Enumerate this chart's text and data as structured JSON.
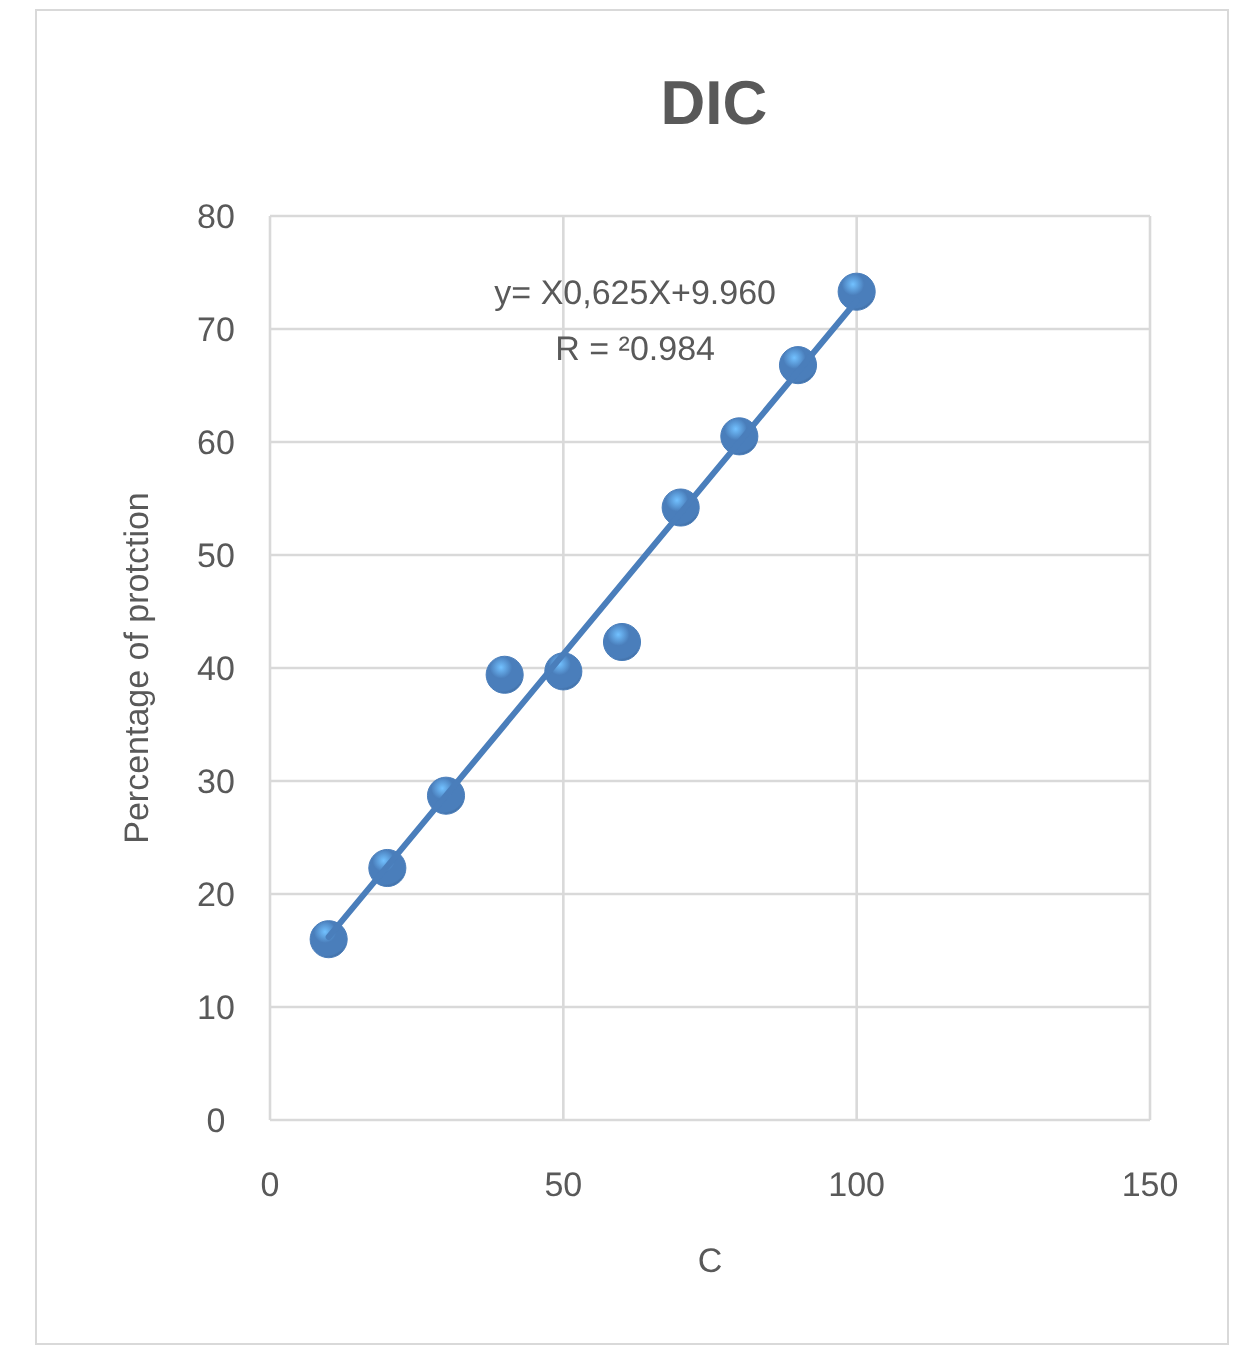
{
  "chart_data": {
    "type": "scatter",
    "title": "DIC",
    "xlabel": "C",
    "ylabel": "Percentage of protction",
    "annotations": [
      "y= X0,625X+9.960",
      "R = ²0.984"
    ],
    "series": [
      {
        "color": "#4a7ebb",
        "marker": "circle",
        "x": [
          10,
          20,
          30,
          40,
          50,
          60,
          70,
          80,
          90,
          100
        ],
        "values": [
          16,
          22.3,
          28.7,
          39.4,
          39.7,
          42.3,
          54.2,
          60.5,
          66.8,
          73.3
        ]
      },
      {
        "type": "line",
        "color": "#4a7ebb",
        "x": [
          10,
          100
        ],
        "values": [
          16.2,
          72.5
        ]
      }
    ],
    "xlim": [
      0,
      150
    ],
    "xticks": [
      0,
      50,
      100,
      150
    ],
    "ylim": [
      0,
      80
    ],
    "yticks": [
      0,
      10,
      20,
      30,
      40,
      50,
      60,
      70,
      80
    ],
    "grid": true
  }
}
